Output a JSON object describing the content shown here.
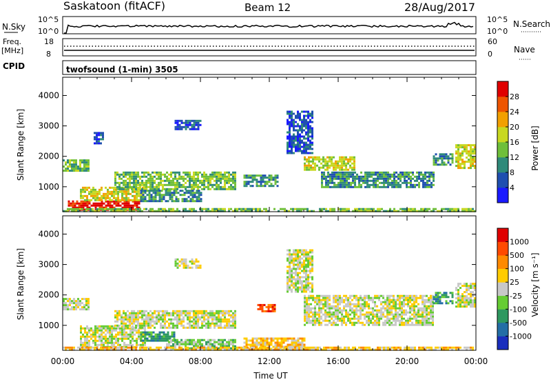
{
  "header": {
    "station": "Saskatoon (fitACF)",
    "beam": "Beam 12",
    "date": "28/Aug/2017"
  },
  "strips": {
    "nsky": {
      "label": "N.Sky",
      "ticks": [
        "10^5",
        "10^0"
      ]
    },
    "nsearch": {
      "label": "N.Search",
      "ticks": [
        "10^5",
        "10^0"
      ]
    },
    "freq": {
      "label_line1": "Freq.",
      "label_line2": "[MHz]",
      "ticks": [
        "18",
        "8"
      ]
    },
    "nave": {
      "label": "Nave",
      "ticks": [
        "60",
        "0"
      ]
    },
    "cpid": {
      "label": "CPID",
      "text": "twofsound (1-min) 3505"
    }
  },
  "chart_data": [
    {
      "type": "heatmap",
      "name": "power",
      "ylabel": "Slant Range [km]",
      "xlabel": "",
      "yticks": [
        "1000",
        "2000",
        "3000",
        "4000"
      ],
      "ylim": [
        180,
        4600
      ],
      "xlim_hours": [
        0,
        24
      ],
      "colorbar": {
        "label": "Power [dB]",
        "ticks": [
          "4",
          "8",
          "12",
          "16",
          "20",
          "24",
          "28"
        ],
        "colors": [
          "#1a1aff",
          "#1f4fb0",
          "#2f8a7a",
          "#6fbf3a",
          "#c8d820",
          "#f2a000",
          "#ee5500",
          "#e00000"
        ]
      },
      "echo_regions": [
        {
          "t0": 0.0,
          "t1": 1.5,
          "r0": 1550,
          "r1": 1900,
          "level": 3
        },
        {
          "t0": 1.8,
          "t1": 2.4,
          "r0": 2450,
          "r1": 2800,
          "level": 1
        },
        {
          "t0": 0.3,
          "t1": 4.5,
          "r0": 250,
          "r1": 550,
          "level": 7
        },
        {
          "t0": 1.0,
          "t1": 4.8,
          "r0": 550,
          "r1": 1000,
          "level": 4
        },
        {
          "t0": 3.0,
          "t1": 10.0,
          "r0": 900,
          "r1": 1500,
          "level": 3
        },
        {
          "t0": 4.5,
          "t1": 8.0,
          "r0": 500,
          "r1": 900,
          "level": 2
        },
        {
          "t0": 6.5,
          "t1": 8.0,
          "r0": 2900,
          "r1": 3200,
          "level": 1
        },
        {
          "t0": 10.5,
          "t1": 12.5,
          "r0": 1000,
          "r1": 1400,
          "level": 2
        },
        {
          "t0": 13.0,
          "t1": 14.5,
          "r0": 2100,
          "r1": 3500,
          "level": 1
        },
        {
          "t0": 14.0,
          "t1": 17.0,
          "r0": 1550,
          "r1": 2000,
          "level": 4
        },
        {
          "t0": 15.0,
          "t1": 21.5,
          "r0": 1000,
          "r1": 1500,
          "level": 2
        },
        {
          "t0": 21.5,
          "t1": 22.7,
          "r0": 1700,
          "r1": 2100,
          "level": 2
        },
        {
          "t0": 22.8,
          "t1": 24.0,
          "r0": 1600,
          "r1": 2400,
          "level": 4
        },
        {
          "t0": 0.0,
          "t1": 24.0,
          "r0": 180,
          "r1": 300,
          "level": 3
        }
      ]
    },
    {
      "type": "heatmap",
      "name": "velocity",
      "ylabel": "Slant Range [km]",
      "xlabel": "Time UT",
      "xticks": [
        "00:00",
        "04:00",
        "08:00",
        "12:00",
        "16:00",
        "20:00",
        "00:00"
      ],
      "yticks": [
        "1000",
        "2000",
        "3000",
        "4000"
      ],
      "ylim": [
        180,
        4600
      ],
      "xlim_hours": [
        0,
        24
      ],
      "colorbar": {
        "label": "Velocity [m s⁻¹]",
        "ticks": [
          "1000",
          "500",
          "100",
          "25",
          "-25",
          "-100",
          "-500",
          "-1000"
        ],
        "colors": [
          "#1a2ebd",
          "#236ea6",
          "#2e9860",
          "#66cc33",
          "#c8c8c8",
          "#ffcc00",
          "#ff8a00",
          "#ff4a00",
          "#e00000"
        ]
      },
      "echo_regions": [
        {
          "t0": 0.0,
          "t1": 1.5,
          "r0": 1550,
          "r1": 1900,
          "level": 4
        },
        {
          "t0": 1.0,
          "t1": 4.8,
          "r0": 300,
          "r1": 1000,
          "level": 4
        },
        {
          "t0": 3.0,
          "t1": 10.0,
          "r0": 900,
          "r1": 1500,
          "level": 4
        },
        {
          "t0": 4.5,
          "t1": 6.5,
          "r0": 500,
          "r1": 800,
          "level": 2
        },
        {
          "t0": 6.0,
          "t1": 10.0,
          "r0": 250,
          "r1": 550,
          "level": 3
        },
        {
          "t0": 6.5,
          "t1": 8.0,
          "r0": 2900,
          "r1": 3200,
          "level": 4
        },
        {
          "t0": 10.5,
          "t1": 14.0,
          "r0": 200,
          "r1": 600,
          "level": 5
        },
        {
          "t0": 11.3,
          "t1": 12.3,
          "r0": 1450,
          "r1": 1700,
          "level": 7
        },
        {
          "t0": 13.0,
          "t1": 14.5,
          "r0": 2100,
          "r1": 3500,
          "level": 4
        },
        {
          "t0": 14.0,
          "t1": 21.5,
          "r0": 1000,
          "r1": 2000,
          "level": 4
        },
        {
          "t0": 21.5,
          "t1": 22.7,
          "r0": 1700,
          "r1": 2100,
          "level": 2
        },
        {
          "t0": 22.8,
          "t1": 24.0,
          "r0": 1600,
          "r1": 2400,
          "level": 4
        },
        {
          "t0": 0.0,
          "t1": 24.0,
          "r0": 180,
          "r1": 300,
          "level": 5
        }
      ]
    }
  ]
}
